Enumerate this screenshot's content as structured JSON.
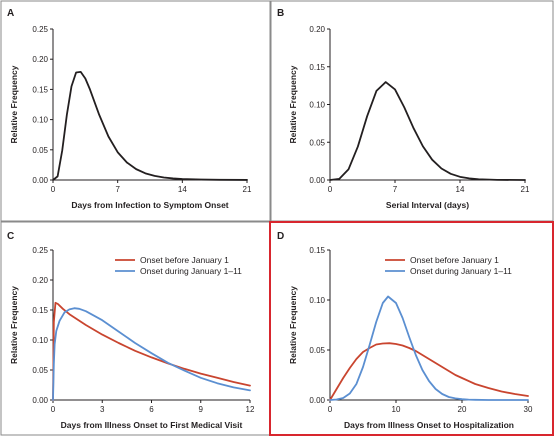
{
  "chart_data": [
    {
      "panel": "A",
      "type": "line",
      "xlabel": "Days from Infection to Symptom Onset",
      "ylabel": "Relative Frequency",
      "xlim": [
        0,
        21
      ],
      "ylim": [
        0,
        0.25
      ],
      "xticks": [
        "0",
        "7",
        "14",
        "21"
      ],
      "yticks": [
        "0.00",
        "0.05",
        "0.10",
        "0.15",
        "0.20",
        "0.25"
      ],
      "grid": false,
      "highlighted": false,
      "series": [
        {
          "color": "#231f20",
          "x": [
            0,
            0.5,
            1,
            1.5,
            2,
            2.5,
            3,
            3.5,
            4,
            5,
            6,
            7,
            8,
            9,
            10,
            11,
            12,
            13,
            14,
            16,
            18,
            21
          ],
          "y": [
            0,
            0.006,
            0.049,
            0.108,
            0.155,
            0.178,
            0.179,
            0.168,
            0.15,
            0.108,
            0.072,
            0.046,
            0.029,
            0.018,
            0.011,
            0.0068,
            0.0042,
            0.0026,
            0.0016,
            0.0007,
            0.0003,
            0.0001
          ]
        }
      ]
    },
    {
      "panel": "B",
      "type": "line",
      "xlabel": "Serial Interval (days)",
      "ylabel": "Relative Frequency",
      "xlim": [
        0,
        21
      ],
      "ylim": [
        0,
        0.2
      ],
      "xticks": [
        "0",
        "7",
        "14",
        "21"
      ],
      "yticks": [
        "0.00",
        "0.05",
        "0.10",
        "0.15",
        "0.20"
      ],
      "grid": false,
      "highlighted": false,
      "series": [
        {
          "color": "#231f20",
          "x": [
            0,
            1,
            2,
            3,
            4,
            5,
            6,
            7,
            8,
            9,
            10,
            11,
            12,
            13,
            14,
            15,
            16,
            18,
            21
          ],
          "y": [
            0,
            0.0015,
            0.0143,
            0.0443,
            0.0845,
            0.118,
            0.1297,
            0.12,
            0.0962,
            0.0686,
            0.0447,
            0.0269,
            0.0152,
            0.0082,
            0.0042,
            0.0021,
            0.001,
            0.0002,
            0
          ]
        }
      ]
    },
    {
      "panel": "C",
      "type": "line",
      "xlabel": "Days from Illness Onset to First Medical Visit",
      "ylabel": "Relative Frequency",
      "xlim": [
        0,
        12
      ],
      "ylim": [
        0,
        0.25
      ],
      "xticks": [
        "0",
        "3",
        "6",
        "9",
        "12"
      ],
      "yticks": [
        "0.00",
        "0.05",
        "0.10",
        "0.15",
        "0.20",
        "0.25"
      ],
      "grid": false,
      "legend_position": "top-right",
      "highlighted": false,
      "series": [
        {
          "name": "Onset before January 1",
          "color": "#c9452f",
          "x": [
            0,
            0.05,
            0.15,
            0.3,
            0.6,
            1,
            2,
            3,
            4,
            5,
            6,
            7,
            8,
            9,
            10,
            11,
            12
          ],
          "y": [
            0,
            0.13,
            0.162,
            0.16,
            0.152,
            0.143,
            0.125,
            0.109,
            0.095,
            0.082,
            0.071,
            0.061,
            0.052,
            0.044,
            0.037,
            0.03,
            0.024
          ]
        },
        {
          "name": "Onset during January 1–11",
          "color": "#5b8fd1",
          "x": [
            0,
            0.05,
            0.1,
            0.2,
            0.4,
            0.7,
            1,
            1.3,
            1.6,
            2,
            3,
            4,
            5,
            6,
            7,
            8,
            9,
            10,
            11,
            12
          ],
          "y": [
            0,
            0.06,
            0.093,
            0.115,
            0.132,
            0.146,
            0.151,
            0.153,
            0.152,
            0.148,
            0.133,
            0.114,
            0.095,
            0.078,
            0.062,
            0.049,
            0.037,
            0.028,
            0.021,
            0.016
          ]
        }
      ]
    },
    {
      "panel": "D",
      "type": "line",
      "xlabel": "Days from Illness Onset to Hospitalization",
      "ylabel": "Relative Frequency",
      "xlim": [
        0,
        30
      ],
      "ylim": [
        0,
        0.15
      ],
      "xticks": [
        "0",
        "10",
        "20",
        "30"
      ],
      "yticks": [
        "0.00",
        "0.05",
        "0.10",
        "0.15"
      ],
      "grid": false,
      "legend_position": "top-right",
      "highlighted": true,
      "series": [
        {
          "name": "Onset before January 1",
          "color": "#c9452f",
          "x": [
            0,
            1,
            2,
            3,
            4,
            5,
            6,
            7,
            8,
            9,
            10,
            11,
            12,
            13,
            14,
            15,
            16,
            17,
            18,
            19,
            20,
            22,
            24,
            26,
            28,
            30
          ],
          "y": [
            0,
            0.011,
            0.022,
            0.032,
            0.041,
            0.048,
            0.052,
            0.0555,
            0.0565,
            0.0568,
            0.056,
            0.0545,
            0.052,
            0.049,
            0.045,
            0.041,
            0.037,
            0.033,
            0.029,
            0.025,
            0.022,
            0.016,
            0.012,
            0.0085,
            0.006,
            0.004
          ]
        },
        {
          "name": "Onset during January 1–11",
          "color": "#5b8fd1",
          "x": [
            0,
            1,
            2,
            3,
            4,
            5,
            6,
            7,
            8,
            8.8,
            10,
            11,
            12,
            13,
            14,
            15,
            16,
            17,
            18,
            19,
            20,
            21,
            22,
            24,
            26,
            28,
            30
          ],
          "y": [
            0,
            0.0005,
            0.002,
            0.0065,
            0.016,
            0.033,
            0.055,
            0.078,
            0.097,
            0.1035,
            0.097,
            0.082,
            0.063,
            0.045,
            0.03,
            0.019,
            0.011,
            0.006,
            0.003,
            0.0016,
            0.0008,
            0.0004,
            0.0002,
            0,
            0,
            0,
            0
          ]
        }
      ]
    }
  ]
}
